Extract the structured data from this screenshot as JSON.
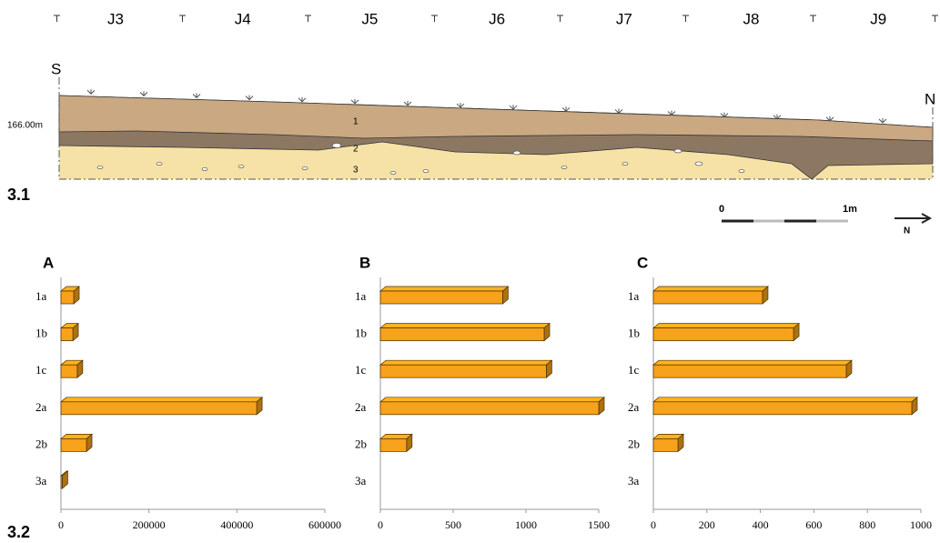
{
  "section": {
    "grid_labels": [
      "J3",
      "J4",
      "J5",
      "J6",
      "J7",
      "J8",
      "J9"
    ],
    "start": "S",
    "end": "N",
    "elevation": "166.00m",
    "layers": [
      "1",
      "2",
      "3"
    ],
    "scale_zero": "0",
    "scale_length": "1m",
    "north": "N",
    "label": "3.1"
  },
  "charts_label": "3.2",
  "chart_data": [
    {
      "type": "bar",
      "orientation": "horizontal",
      "title": "A",
      "categories": [
        "1a",
        "1b",
        "1c",
        "2a",
        "2b",
        "3a"
      ],
      "values": [
        29000,
        27000,
        37000,
        445000,
        58000,
        3000
      ],
      "color": "#f7a21b",
      "xlim": [
        0,
        600000
      ],
      "xticks": [
        0,
        200000,
        400000,
        600000
      ]
    },
    {
      "type": "bar",
      "orientation": "horizontal",
      "title": "B",
      "categories": [
        "1a",
        "1b",
        "1c",
        "2a",
        "2b",
        "3a"
      ],
      "values": [
        840,
        1125,
        1140,
        1500,
        180,
        0
      ],
      "color": "#f7a21b",
      "xlim": [
        0,
        1500
      ],
      "xticks": [
        0,
        500,
        1000,
        1500
      ]
    },
    {
      "type": "bar",
      "orientation": "horizontal",
      "title": "C",
      "categories": [
        "1a",
        "1b",
        "1c",
        "2a",
        "2b",
        "3a"
      ],
      "values": [
        408,
        524,
        721,
        966,
        92,
        0
      ],
      "color": "#f7a21b",
      "xlim": [
        0,
        1000
      ],
      "xticks": [
        0,
        200,
        400,
        600,
        800,
        1000
      ]
    }
  ]
}
